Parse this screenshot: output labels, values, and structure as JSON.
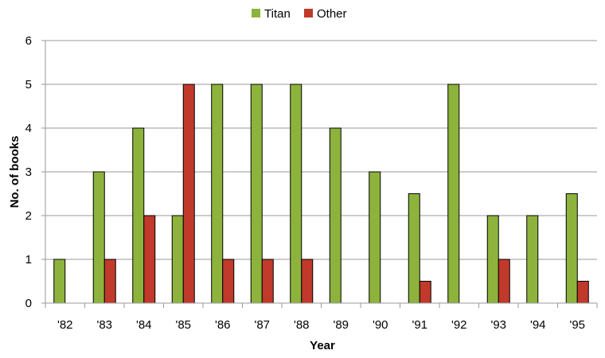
{
  "chart_data": {
    "type": "bar",
    "categories": [
      "'82",
      "'83",
      "'84",
      "'85",
      "'86",
      "'87",
      "'88",
      "'89",
      "'90",
      "'91",
      "'92",
      "'93",
      "'94",
      "'95"
    ],
    "series": [
      {
        "name": "Titan",
        "color": "#8DB33D",
        "values": [
          1,
          3,
          4,
          2,
          5,
          5,
          5,
          4,
          3,
          2.5,
          5,
          2,
          2,
          2.5
        ]
      },
      {
        "name": "Other",
        "color": "#C0392B",
        "values": [
          0,
          1,
          2,
          5,
          1,
          1,
          1,
          0,
          0,
          0.5,
          0,
          1,
          0,
          0.5
        ]
      }
    ],
    "title": "",
    "xlabel": "Year",
    "ylabel": "No. of books",
    "ylim": [
      0,
      6
    ],
    "yticks": [
      "0",
      "1",
      "2",
      "3",
      "4",
      "5",
      "6"
    ],
    "grid": true,
    "legend_position": "top-center"
  }
}
